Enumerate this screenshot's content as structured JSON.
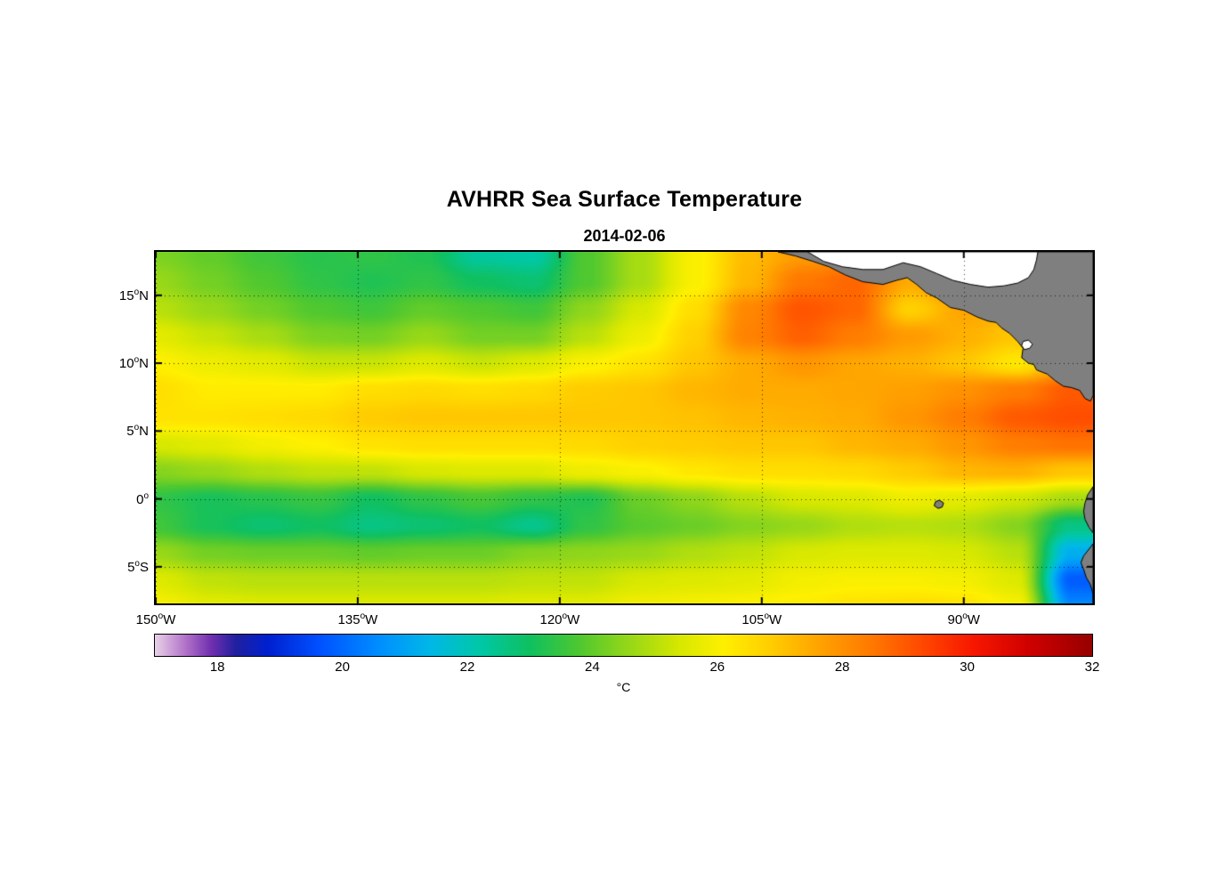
{
  "title": "AVHRR Sea Surface Temperature",
  "date": "2014-02-06",
  "axes": {
    "x_ticks": [
      {
        "v": "150",
        "d": "W",
        "lon": 150
      },
      {
        "v": "135",
        "d": "W",
        "lon": 135
      },
      {
        "v": "120",
        "d": "W",
        "lon": 120
      },
      {
        "v": "105",
        "d": "W",
        "lon": 105
      },
      {
        "v": "90",
        "d": "W",
        "lon": 90
      }
    ],
    "y_ticks": [
      {
        "v": "15",
        "d": "N",
        "lat": 15
      },
      {
        "v": "10",
        "d": "N",
        "lat": 10
      },
      {
        "v": "5",
        "d": "N",
        "lat": 5
      },
      {
        "v": "0",
        "d": "",
        "lat": 0
      },
      {
        "v": "5",
        "d": "S",
        "lat": -5
      }
    ]
  },
  "colorbar": {
    "min": 17,
    "max": 32,
    "ticks": [
      18,
      20,
      22,
      24,
      26,
      28,
      30,
      32
    ],
    "unit": "°C"
  },
  "chart_data": {
    "type": "heatmap",
    "title": "AVHRR Sea Surface Temperature",
    "subtitle": "2014-02-06",
    "xlabel_ticks": [
      "150°W",
      "135°W",
      "120°W",
      "105°W",
      "90°W"
    ],
    "ylabel_ticks": [
      "15°N",
      "10°N",
      "5°N",
      "0°",
      "5°S"
    ],
    "unit": "°C",
    "value_range": [
      17,
      32
    ],
    "lon_w_range": [
      150,
      80.4
    ],
    "lat_range": [
      18.2,
      -7.7
    ],
    "grid_lons_w": [
      150,
      135,
      120,
      105,
      90
    ],
    "grid_lats": [
      15,
      10,
      5,
      0,
      -5
    ],
    "lon_w": [
      150,
      146,
      142,
      138,
      134,
      130,
      126,
      122,
      118,
      114,
      110,
      106,
      102,
      98,
      94,
      90,
      86,
      82
    ],
    "lat": [
      18,
      16,
      14,
      12,
      10,
      8,
      6,
      4,
      2,
      0,
      -2,
      -4,
      -6,
      -8
    ],
    "sst_c": [
      [
        24.3,
        24.0,
        23.6,
        23.3,
        23.4,
        23.2,
        22.3,
        22.2,
        23.8,
        24.8,
        26.0,
        27.2,
        27.8,
        28.2,
        28.3,
        28.3,
        28.2,
        28.0
      ],
      [
        24.6,
        24.2,
        23.8,
        23.4,
        23.2,
        23.4,
        23.0,
        22.8,
        23.8,
        24.8,
        26.0,
        27.3,
        28.5,
        28.8,
        27.5,
        28.3,
        28.0,
        27.8
      ],
      [
        25.0,
        24.6,
        24.2,
        23.8,
        23.6,
        24.0,
        23.8,
        23.6,
        24.5,
        25.4,
        26.5,
        28.2,
        29.1,
        28.8,
        26.8,
        27.6,
        27.4,
        27.3
      ],
      [
        25.6,
        25.2,
        24.8,
        24.3,
        24.2,
        24.6,
        24.2,
        24.2,
        25.0,
        25.8,
        26.8,
        28.3,
        28.9,
        28.4,
        27.8,
        27.4,
        27.0,
        27.0
      ],
      [
        26.1,
        25.8,
        25.6,
        25.2,
        25.2,
        25.5,
        25.2,
        25.5,
        26.0,
        26.4,
        27.0,
        27.5,
        27.9,
        27.6,
        27.4,
        27.0,
        26.3,
        27.6
      ],
      [
        26.5,
        26.2,
        26.2,
        26.2,
        26.5,
        26.6,
        26.5,
        26.6,
        26.9,
        27.0,
        27.3,
        27.5,
        27.5,
        27.6,
        27.7,
        28.0,
        28.4,
        29.0
      ],
      [
        26.4,
        26.4,
        26.5,
        26.6,
        26.9,
        27.0,
        27.0,
        27.0,
        27.0,
        27.0,
        27.1,
        27.3,
        27.4,
        27.5,
        27.9,
        28.4,
        29.0,
        29.2
      ],
      [
        25.4,
        25.6,
        25.9,
        26.1,
        26.4,
        26.5,
        26.5,
        26.5,
        26.6,
        26.8,
        26.9,
        27.0,
        27.0,
        27.3,
        27.5,
        27.9,
        28.4,
        28.6
      ],
      [
        24.4,
        24.6,
        24.9,
        25.1,
        25.1,
        25.4,
        25.5,
        25.5,
        25.8,
        26.0,
        26.3,
        26.5,
        26.5,
        26.6,
        26.9,
        27.3,
        27.4,
        27.0
      ],
      [
        23.4,
        23.1,
        23.3,
        23.5,
        23.0,
        23.4,
        23.7,
        23.4,
        23.2,
        24.1,
        24.5,
        25.0,
        25.4,
        25.5,
        25.8,
        25.6,
        25.3,
        24.8
      ],
      [
        23.6,
        23.1,
        22.8,
        23.0,
        22.6,
        22.8,
        23.0,
        22.5,
        23.4,
        23.9,
        24.1,
        24.4,
        24.6,
        24.9,
        25.0,
        24.9,
        24.4,
        22.6
      ],
      [
        24.6,
        24.2,
        24.1,
        24.1,
        24.0,
        24.1,
        24.1,
        24.4,
        24.5,
        24.6,
        24.9,
        25.1,
        25.4,
        25.5,
        25.5,
        25.4,
        25.0,
        21.2
      ],
      [
        25.5,
        25.1,
        25.0,
        25.0,
        25.0,
        25.0,
        25.0,
        25.1,
        25.1,
        25.4,
        25.5,
        25.6,
        25.9,
        26.0,
        26.0,
        25.9,
        25.5,
        19.8
      ],
      [
        26.0,
        25.6,
        25.5,
        25.5,
        25.5,
        25.5,
        25.5,
        25.6,
        25.6,
        25.9,
        26.0,
        26.1,
        26.2,
        26.4,
        26.5,
        26.4,
        26.0,
        20.5
      ]
    ],
    "colormap_stops": [
      [
        17.0,
        "#E8D0E8"
      ],
      [
        17.5,
        "#B070C8"
      ],
      [
        17.9,
        "#7030B0"
      ],
      [
        18.3,
        "#2020A0"
      ],
      [
        18.8,
        "#0020D0"
      ],
      [
        19.6,
        "#0050FF"
      ],
      [
        20.6,
        "#0090FF"
      ],
      [
        21.4,
        "#00B8E8"
      ],
      [
        22.2,
        "#00C8A8"
      ],
      [
        23.0,
        "#10C060"
      ],
      [
        23.8,
        "#50C830"
      ],
      [
        24.6,
        "#98D818"
      ],
      [
        25.4,
        "#D8E800"
      ],
      [
        26.1,
        "#FFF000"
      ],
      [
        26.9,
        "#FFCC00"
      ],
      [
        27.7,
        "#FFA000"
      ],
      [
        28.5,
        "#FF7800"
      ],
      [
        29.3,
        "#FF4800"
      ],
      [
        30.1,
        "#F81800"
      ],
      [
        31.0,
        "#D00000"
      ],
      [
        32.0,
        "#980000"
      ]
    ],
    "land_color": "#7F7F7F",
    "no_data_color": "#FFFFFF",
    "land_polygons": {
      "central_america": [
        [
          103.8,
          18.2
        ],
        [
          102.5,
          17.9
        ],
        [
          101.2,
          17.5
        ],
        [
          100.0,
          17.1
        ],
        [
          98.8,
          16.5
        ],
        [
          97.5,
          16.0
        ],
        [
          96.0,
          15.8
        ],
        [
          95.0,
          16.1
        ],
        [
          94.2,
          16.3
        ],
        [
          93.5,
          15.8
        ],
        [
          92.8,
          15.2
        ],
        [
          92.0,
          14.8
        ],
        [
          91.0,
          14.1
        ],
        [
          90.0,
          13.9
        ],
        [
          89.0,
          13.4
        ],
        [
          88.2,
          13.1
        ],
        [
          87.6,
          13.0
        ],
        [
          87.2,
          12.6
        ],
        [
          86.6,
          12.2
        ],
        [
          86.0,
          11.6
        ],
        [
          85.6,
          11.1
        ],
        [
          85.7,
          10.4
        ],
        [
          85.2,
          10.0
        ],
        [
          84.8,
          9.9
        ],
        [
          84.6,
          9.5
        ],
        [
          83.8,
          9.2
        ],
        [
          83.2,
          8.7
        ],
        [
          82.6,
          8.3
        ],
        [
          82.0,
          8.2
        ],
        [
          81.4,
          8.0
        ],
        [
          81.0,
          7.4
        ],
        [
          80.6,
          7.2
        ],
        [
          80.4,
          7.6
        ],
        [
          80.4,
          18.2
        ]
      ],
      "ecuador": [
        [
          80.4,
          0.9
        ],
        [
          80.8,
          0.3
        ],
        [
          81.0,
          -0.3
        ],
        [
          81.1,
          -0.9
        ],
        [
          81.0,
          -1.5
        ],
        [
          80.7,
          -2.1
        ],
        [
          80.4,
          -2.5
        ]
      ],
      "peru": [
        [
          80.4,
          -3.3
        ],
        [
          80.7,
          -3.7
        ],
        [
          81.1,
          -4.2
        ],
        [
          81.3,
          -4.7
        ],
        [
          81.1,
          -5.2
        ],
        [
          80.9,
          -5.8
        ],
        [
          80.6,
          -6.3
        ],
        [
          80.4,
          -7.0
        ],
        [
          80.4,
          -7.7
        ]
      ],
      "galapagos": [
        [
          92.1,
          -0.2
        ],
        [
          91.8,
          -0.1
        ],
        [
          91.5,
          -0.3
        ],
        [
          91.6,
          -0.6
        ],
        [
          91.9,
          -0.7
        ],
        [
          92.2,
          -0.5
        ]
      ]
    },
    "no_data_polygons": {
      "caribbean": [
        [
          101.6,
          18.2
        ],
        [
          100.4,
          17.5
        ],
        [
          99.0,
          17.1
        ],
        [
          97.5,
          16.9
        ],
        [
          96.0,
          16.9
        ],
        [
          94.5,
          17.4
        ],
        [
          93.2,
          17.1
        ],
        [
          92.0,
          16.6
        ],
        [
          90.8,
          16.1
        ],
        [
          89.5,
          15.8
        ],
        [
          88.2,
          15.6
        ],
        [
          87.0,
          15.7
        ],
        [
          86.0,
          15.9
        ],
        [
          85.2,
          16.3
        ],
        [
          84.8,
          16.9
        ],
        [
          84.6,
          17.6
        ],
        [
          84.5,
          18.2
        ]
      ],
      "lake_nicaragua": [
        [
          85.6,
          11.6
        ],
        [
          85.2,
          11.7
        ],
        [
          84.9,
          11.4
        ],
        [
          85.1,
          11.1
        ],
        [
          85.5,
          11.0
        ],
        [
          85.7,
          11.3
        ]
      ]
    }
  }
}
